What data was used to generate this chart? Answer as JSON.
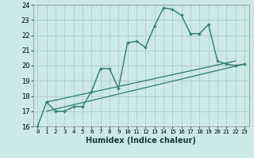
{
  "xlabel": "Humidex (Indice chaleur)",
  "bg_color": "#cce8e8",
  "grid_color": "#aacccc",
  "line_color": "#2e7d6e",
  "xlim": [
    -0.5,
    23.5
  ],
  "ylim": [
    16,
    24
  ],
  "xticks": [
    0,
    1,
    2,
    3,
    4,
    5,
    6,
    7,
    8,
    9,
    10,
    11,
    12,
    13,
    14,
    15,
    16,
    17,
    18,
    19,
    20,
    21,
    22,
    23
  ],
  "yticks": [
    16,
    17,
    18,
    19,
    20,
    21,
    22,
    23,
    24
  ],
  "series1_x": [
    0,
    1,
    2,
    3,
    4,
    5,
    6,
    7,
    8,
    9,
    10,
    11,
    12,
    13,
    14,
    15,
    16,
    17,
    18,
    19,
    20,
    21,
    22,
    23
  ],
  "series1_y": [
    16.0,
    17.6,
    17.0,
    17.0,
    17.3,
    17.3,
    18.3,
    19.8,
    19.8,
    18.5,
    21.5,
    21.6,
    21.2,
    22.6,
    23.8,
    23.7,
    23.3,
    22.1,
    22.1,
    22.7,
    20.3,
    20.1,
    20.0,
    20.1
  ],
  "series2_x": [
    1,
    23
  ],
  "series2_y": [
    17.0,
    20.1
  ],
  "series3_x": [
    1,
    22
  ],
  "series3_y": [
    17.6,
    20.3
  ]
}
